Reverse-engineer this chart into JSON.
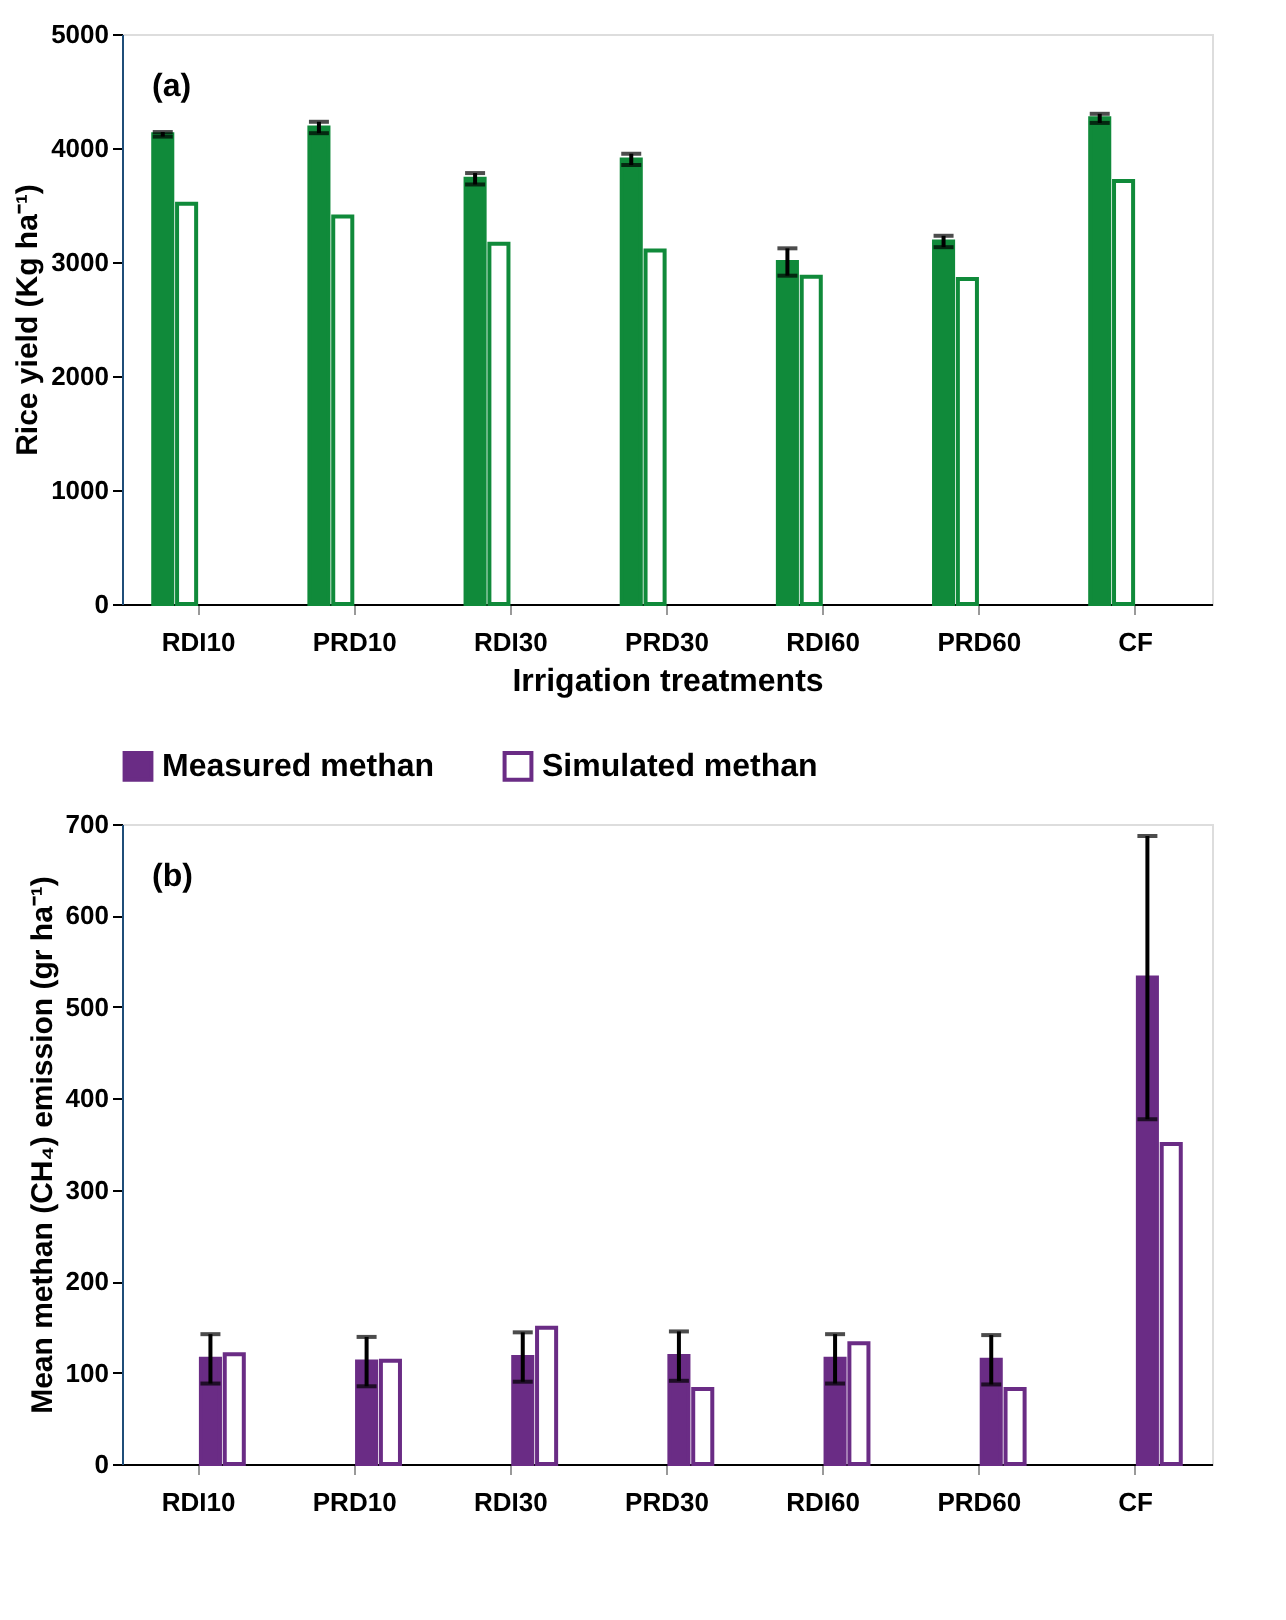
{
  "chart_data": [
    {
      "type": "bar",
      "categories": [
        "RDI10",
        "PRD10",
        "RDI30",
        "PRD30",
        "RDI60",
        "PRD60",
        "CF"
      ],
      "xlabel": "Irrigation treatments",
      "ylabel": "Rice yield (Kg ha⁻¹)",
      "ylim": [
        0,
        5000
      ],
      "yticks": [
        0,
        1000,
        2000,
        3000,
        4000,
        5000
      ],
      "grid": false,
      "annotations": [
        "(a)"
      ],
      "series": [
        {
          "color": "#108a3a",
          "values": [
            4120,
            4180,
            3730,
            3900,
            3000,
            3180,
            4260
          ],
          "errors": [
            20,
            50,
            50,
            50,
            120,
            50,
            40
          ]
        },
        {
          "color": "#108a3a",
          "values": [
            3510,
            3400,
            3160,
            3100,
            2870,
            2850,
            3710
          ]
        }
      ]
    },
    {
      "type": "bar",
      "categories": [
        "RDI10",
        "PRD10",
        "RDI30",
        "PRD30",
        "RDI60",
        "PRD60",
        "CF"
      ],
      "ylabel": "Mean  methan (CH₄) emission (gr ha⁻¹)",
      "ylim": [
        0,
        700
      ],
      "yticks": [
        0,
        100,
        200,
        300,
        400,
        500,
        600,
        700
      ],
      "grid": false,
      "legend": "top",
      "annotations": [
        "(b)"
      ],
      "series": [
        {
          "name": "Measured methan",
          "color": "#6a2c85",
          "values": [
            115,
            112,
            117,
            118,
            115,
            114,
            532
          ],
          "errors": [
            27,
            27,
            27,
            27,
            27,
            27,
            155
          ]
        },
        {
          "name": "Simulated methan",
          "color": "#6a2c85",
          "values": [
            120,
            113,
            149,
            82,
            132,
            82,
            350
          ]
        }
      ]
    }
  ]
}
